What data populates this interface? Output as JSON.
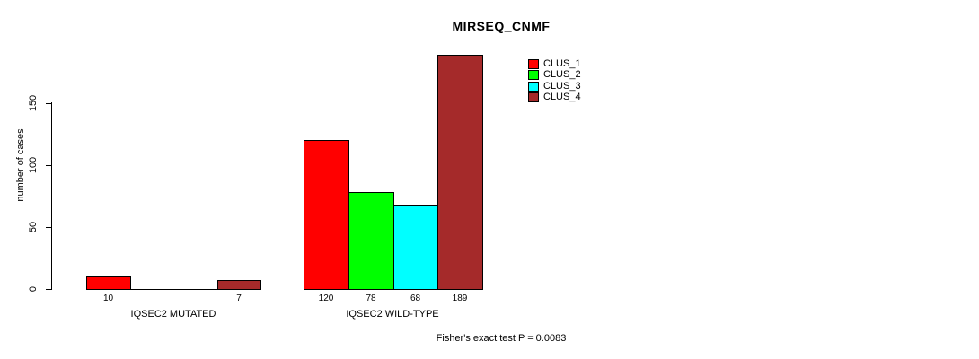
{
  "chart_data": {
    "type": "bar",
    "title": "MIRSEQ_CNMF",
    "ylabel": "number of cases",
    "xlabel": "",
    "yticks": [
      0,
      50,
      100,
      150
    ],
    "ylim": [
      0,
      190
    ],
    "grid": false,
    "legend_position": "top-right",
    "categories": [
      "IQSEC2 MUTATED",
      "IQSEC2 WILD-TYPE"
    ],
    "series": [
      {
        "name": "CLUS_1",
        "color": "#FF0000",
        "values": [
          10,
          120
        ]
      },
      {
        "name": "CLUS_2",
        "color": "#00FF00",
        "values": [
          0,
          78
        ]
      },
      {
        "name": "CLUS_3",
        "color": "#00FFFF",
        "values": [
          0,
          68
        ]
      },
      {
        "name": "CLUS_4",
        "color": "#A52A2A",
        "values": [
          7,
          189
        ]
      }
    ],
    "bar_value_labels": [
      [
        "10",
        "",
        "",
        "7"
      ],
      [
        "120",
        "78",
        "68",
        "189"
      ]
    ],
    "annotation": "Fisher's exact test P = 0.0083"
  }
}
